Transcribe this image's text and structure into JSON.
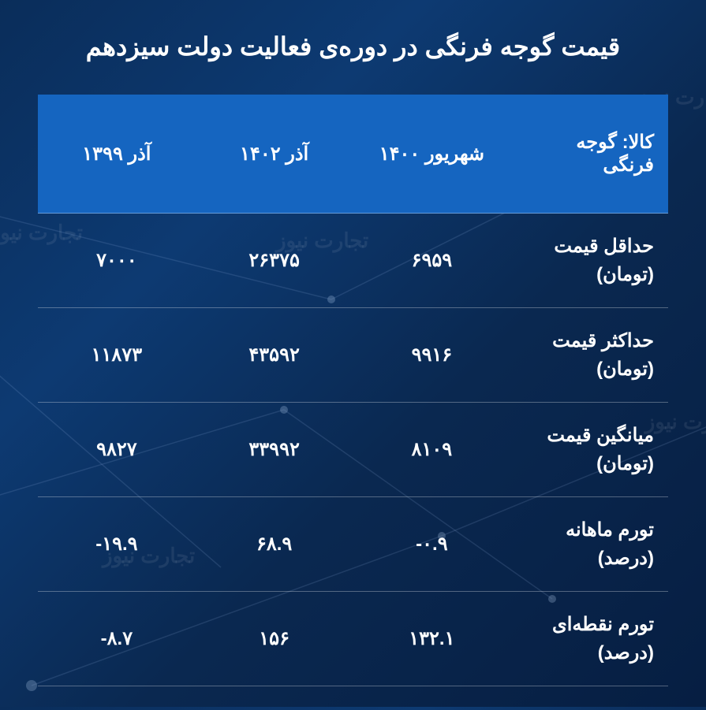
{
  "title": "قیمت گوجه فرنگی در دوره‌ی فعالیت دولت سیزدهم",
  "watermark_text": "تجارت نیوز",
  "table": {
    "headers": {
      "item": "کالا: گوجه فرنگی",
      "col1": "شهریور ۱۴۰۰",
      "col2": "آذر ۱۴۰۲",
      "col3": "آذر ۱۳۹۹"
    },
    "rows": [
      {
        "label": "حداقل قیمت (تومان)",
        "c1": "۶۹۵۹",
        "c2": "۲۶۳۷۵",
        "c3": "۷۰۰۰"
      },
      {
        "label": "حداکثر قیمت (تومان)",
        "c1": "۹۹۱۶",
        "c2": "۴۳۵۹۲",
        "c3": "۱۱۸۷۳"
      },
      {
        "label": "میانگین قیمت (تومان)",
        "c1": "۸۱۰۹",
        "c2": "۳۳۹۹۲",
        "c3": "۹۸۲۷"
      },
      {
        "label": "تورم ماهانه (درصد)",
        "c1": "-۰.۹",
        "c2": "۶۸.۹",
        "c3": "-۱۹.۹"
      },
      {
        "label": "تورم نقطه‌ای (درصد)",
        "c1": "۱۳۲.۱",
        "c2": "۱۵۶",
        "c3": "-۸.۷"
      }
    ]
  },
  "colors": {
    "header_bg": "#1565c0",
    "text": "#ffffff",
    "divider": "rgba(255,255,255,0.3)"
  }
}
